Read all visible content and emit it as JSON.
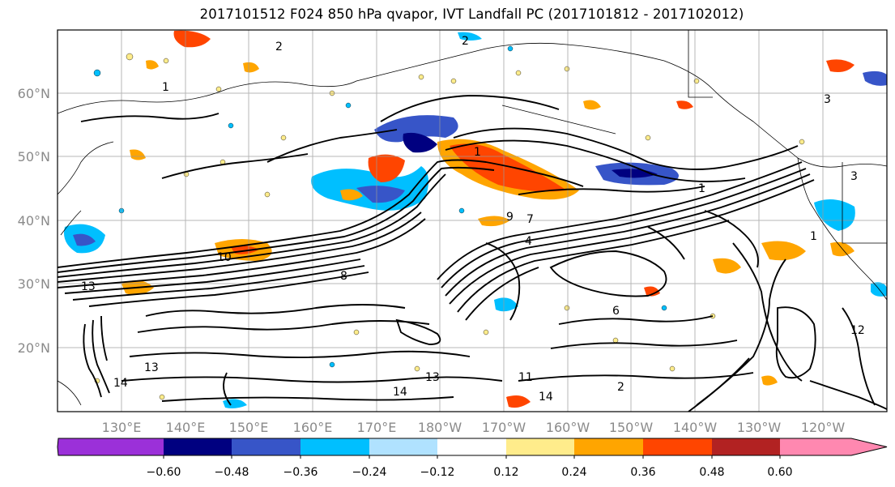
{
  "title": "2017101512 F024 850 hPa qvapor, IVT Landfall PC (2017101812 - 2017102012)",
  "map": {
    "lon_ticks": [
      "130°E",
      "140°E",
      "150°E",
      "160°E",
      "170°E",
      "180°W",
      "170°W",
      "160°W",
      "150°W",
      "140°W",
      "130°W",
      "120°W"
    ],
    "lat_ticks": [
      "60°N",
      "50°N",
      "40°N",
      "30°N",
      "20°N"
    ],
    "gridlines": true,
    "contour_labels": [
      "2",
      "2",
      "1",
      "1",
      "1",
      "3",
      "3",
      "4",
      "6",
      "7",
      "8",
      "9",
      "10",
      "13",
      "13",
      "13",
      "14",
      "14",
      "14",
      "11",
      "12",
      "2",
      "1"
    ]
  },
  "colorbar": {
    "ticks": [
      "−0.60",
      "−0.48",
      "−0.36",
      "−0.24",
      "−0.12",
      "0.12",
      "0.24",
      "0.36",
      "0.48",
      "0.60"
    ],
    "colors": [
      "#9b30d9",
      "#000080",
      "#3755c8",
      "#00bfff",
      "#b0e2ff",
      "#ffffff",
      "#ffec8b",
      "#ffa500",
      "#ff4500",
      "#b22222",
      "#ff88b0"
    ]
  }
}
